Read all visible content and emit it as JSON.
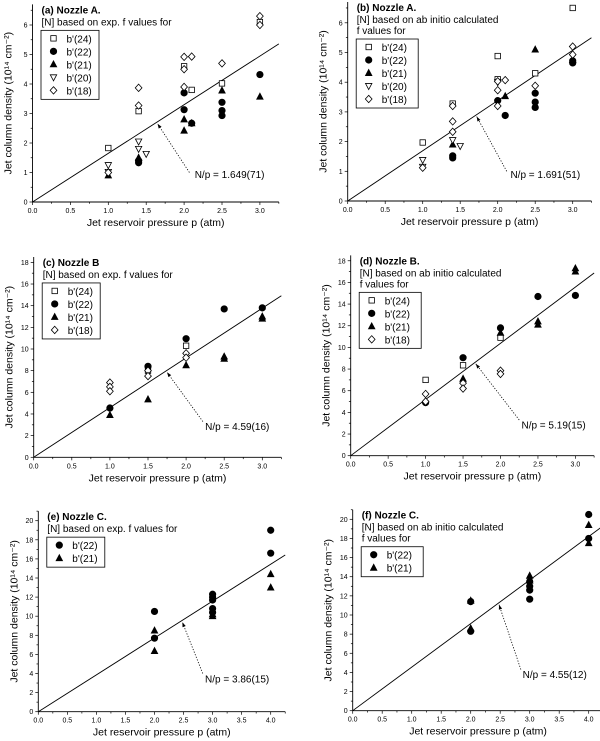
{
  "chart_data": [
    {
      "type": "scatter",
      "title": "(a) Nozzle A.",
      "subtitle_lines": [
        "[N] based on exp. f values for"
      ],
      "xlabel": "Jet reservoir pressure p (atm)",
      "ylabel": "Jet column density (10¹⁴ cm⁻²)",
      "xlim": [
        0,
        3.25
      ],
      "ylim": [
        0,
        6.7
      ],
      "xticks": [
        "0.0",
        "0.5",
        "1.0",
        "1.5",
        "2.0",
        "2.5",
        "3.0"
      ],
      "yticks": [
        "0",
        "1",
        "2",
        "3",
        "4",
        "5",
        "6"
      ],
      "fit": {
        "slope": 1.649,
        "label": "N/p = 1.649(71)"
      },
      "series": [
        {
          "name": "b'(24)",
          "marker": "open-square",
          "points": [
            [
              1.0,
              1.83
            ],
            [
              1.4,
              3.08
            ],
            [
              2.0,
              4.6
            ],
            [
              2.1,
              3.8
            ],
            [
              2.5,
              4.02
            ],
            [
              3.0,
              6.1
            ]
          ]
        },
        {
          "name": "b'(22)",
          "marker": "filled-circle",
          "points": [
            [
              1.4,
              1.33
            ],
            [
              1.4,
              1.4
            ],
            [
              2.0,
              3.7
            ],
            [
              2.0,
              3.13
            ],
            [
              2.1,
              2.67
            ],
            [
              2.5,
              3.38
            ],
            [
              2.5,
              3.1
            ],
            [
              2.5,
              2.93
            ],
            [
              3.0,
              4.32
            ]
          ]
        },
        {
          "name": "b'(21)",
          "marker": "filled-triangle",
          "points": [
            [
              1.0,
              0.9
            ],
            [
              1.4,
              1.5
            ],
            [
              2.0,
              2.8
            ],
            [
              2.0,
              2.42
            ],
            [
              2.1,
              2.67
            ],
            [
              2.5,
              3.78
            ],
            [
              3.0,
              3.57
            ]
          ]
        },
        {
          "name": "b'(20)",
          "marker": "open-down-triangle",
          "points": [
            [
              1.0,
              1.25
            ],
            [
              1.0,
              1.02
            ],
            [
              1.4,
              2.05
            ],
            [
              1.4,
              1.8
            ],
            [
              1.5,
              1.63
            ]
          ]
        },
        {
          "name": "b'(18)",
          "marker": "open-diamond",
          "points": [
            [
              1.0,
              1.0
            ],
            [
              1.4,
              3.87
            ],
            [
              1.4,
              3.27
            ],
            [
              2.0,
              4.92
            ],
            [
              2.0,
              4.5
            ],
            [
              2.0,
              3.9
            ],
            [
              2.1,
              4.93
            ],
            [
              2.5,
              4.7
            ],
            [
              3.0,
              6.3
            ],
            [
              3.0,
              6.0
            ]
          ]
        }
      ]
    },
    {
      "type": "scatter",
      "title": "(b) Nozzle A.",
      "subtitle_lines": [
        "[N] based on ab initio calculated",
        "f values for"
      ],
      "xlabel": "Jet reservoir pressure p (atm)",
      "ylabel": "Jet column density (10¹⁴ cm⁻²)",
      "xlim": [
        0,
        3.25
      ],
      "ylim": [
        0,
        6.7
      ],
      "xticks": [
        "0.0",
        "0.5",
        "1.0",
        "1.5",
        "2.0",
        "2.5",
        "3.0"
      ],
      "yticks": [
        "0",
        "1",
        "2",
        "3",
        "4",
        "5",
        "6"
      ],
      "fit": {
        "slope": 1.691,
        "label": "N/p = 1.691(51)"
      },
      "series": [
        {
          "name": "b'(24)",
          "marker": "open-square",
          "points": [
            [
              1.0,
              1.97
            ],
            [
              1.4,
              3.28
            ],
            [
              2.0,
              4.88
            ],
            [
              2.0,
              4.1
            ],
            [
              2.5,
              4.3
            ],
            [
              3.0,
              6.5
            ]
          ]
        },
        {
          "name": "b'(22)",
          "marker": "filled-circle",
          "points": [
            [
              1.4,
              1.52
            ],
            [
              1.4,
              1.45
            ],
            [
              2.0,
              3.38
            ],
            [
              2.1,
              2.88
            ],
            [
              2.5,
              3.63
            ],
            [
              2.5,
              3.33
            ],
            [
              2.5,
              3.15
            ],
            [
              3.0,
              4.65
            ],
            [
              3.0,
              4.72
            ]
          ]
        },
        {
          "name": "b'(21)",
          "marker": "filled-triangle",
          "points": [
            [
              1.4,
              1.9
            ],
            [
              2.1,
              3.53
            ],
            [
              2.5,
              5.1
            ],
            [
              3.0,
              4.75
            ]
          ]
        },
        {
          "name": "b'(20)",
          "marker": "open-down-triangle",
          "points": [
            [
              1.0,
              1.38
            ],
            [
              1.0,
              1.15
            ],
            [
              1.4,
              2.05
            ],
            [
              1.5,
              1.85
            ],
            [
              2.0,
              4.0
            ]
          ]
        },
        {
          "name": "b'(18)",
          "marker": "open-diamond",
          "points": [
            [
              1.0,
              1.12
            ],
            [
              1.4,
              3.2
            ],
            [
              1.4,
              2.68
            ],
            [
              1.4,
              2.33
            ],
            [
              2.0,
              4.03
            ],
            [
              2.0,
              3.73
            ],
            [
              2.0,
              3.2
            ],
            [
              2.1,
              4.07
            ],
            [
              2.5,
              3.88
            ],
            [
              3.0,
              5.2
            ],
            [
              3.0,
              4.93
            ]
          ]
        }
      ]
    },
    {
      "type": "scatter",
      "title": "(c) Nozzle B",
      "subtitle_lines": [
        "[N] based on exp. f values for"
      ],
      "xlabel": "Jet reservoir pressure p (atm)",
      "ylabel": "Jet column density (10¹⁴ cm⁻²)",
      "xlim": [
        0,
        3.25
      ],
      "ylim": [
        0,
        18.5
      ],
      "xticks": [
        "0.0",
        "0.5",
        "1.0",
        "1.5",
        "2.0",
        "2.5",
        "3.0"
      ],
      "yticks": [
        "0",
        "2",
        "4",
        "6",
        "8",
        "10",
        "12",
        "14",
        "16",
        "18"
      ],
      "fit": {
        "slope": 4.59,
        "label": "N/p = 4.59(16)"
      },
      "series": [
        {
          "name": "b'(24)",
          "marker": "open-square",
          "points": [
            [
              1.5,
              8.0
            ],
            [
              2.0,
              10.3
            ]
          ]
        },
        {
          "name": "b'(22)",
          "marker": "filled-circle",
          "points": [
            [
              1.0,
              4.55
            ],
            [
              1.5,
              8.4
            ],
            [
              2.0,
              10.95
            ],
            [
              2.5,
              13.7
            ],
            [
              3.0,
              13.8
            ]
          ]
        },
        {
          "name": "b'(21)",
          "marker": "filled-triangle",
          "points": [
            [
              1.0,
              3.9
            ],
            [
              1.5,
              5.35
            ],
            [
              2.0,
              8.5
            ],
            [
              2.5,
              9.3
            ],
            [
              2.5,
              9.1
            ],
            [
              3.0,
              13.0
            ],
            [
              3.0,
              12.8
            ]
          ]
        },
        {
          "name": "b'(18)",
          "marker": "open-diamond",
          "points": [
            [
              1.0,
              6.9
            ],
            [
              1.0,
              6.5
            ],
            [
              1.0,
              6.1
            ],
            [
              1.5,
              8.0
            ],
            [
              1.5,
              7.5
            ],
            [
              2.0,
              9.6
            ],
            [
              2.0,
              9.2
            ]
          ]
        }
      ]
    },
    {
      "type": "scatter",
      "title": "(d) Nozzle B.",
      "subtitle_lines": [
        "[N] based on ab initio calculated",
        "f values for"
      ],
      "xlabel": "Jet reservoir pressure p (atm)",
      "ylabel": "Jet column density (10¹⁴ cm⁻²)",
      "xlim": [
        0,
        3.25
      ],
      "ylim": [
        0,
        18.5
      ],
      "xticks": [
        "0.0",
        "0.5",
        "1.0",
        "1.5",
        "2.0",
        "2.5",
        "3.0"
      ],
      "yticks": [
        "0",
        "2",
        "4",
        "6",
        "8",
        "10",
        "12",
        "14",
        "16",
        "18"
      ],
      "fit": {
        "slope": 5.19,
        "label": "N/p = 5.19(15)"
      },
      "series": [
        {
          "name": "b'(24)",
          "marker": "open-square",
          "points": [
            [
              1.0,
              7.0
            ],
            [
              1.5,
              8.35
            ],
            [
              2.0,
              10.9
            ]
          ]
        },
        {
          "name": "b'(22)",
          "marker": "filled-circle",
          "points": [
            [
              1.0,
              4.9
            ],
            [
              1.5,
              9.05
            ],
            [
              2.0,
              11.8
            ],
            [
              2.5,
              14.7
            ],
            [
              3.0,
              14.8
            ]
          ]
        },
        {
          "name": "b'(21)",
          "marker": "filled-triangle",
          "points": [
            [
              1.5,
              7.1
            ],
            [
              2.0,
              11.35
            ],
            [
              2.5,
              12.4
            ],
            [
              2.5,
              12.1
            ],
            [
              3.0,
              17.3
            ],
            [
              3.0,
              17.0
            ]
          ]
        },
        {
          "name": "b'(18)",
          "marker": "open-diamond",
          "points": [
            [
              1.0,
              5.7
            ],
            [
              1.0,
              5.0
            ],
            [
              1.5,
              6.7
            ],
            [
              1.5,
              6.2
            ],
            [
              2.0,
              7.85
            ],
            [
              2.0,
              7.55
            ]
          ]
        }
      ]
    },
    {
      "type": "scatter",
      "title": "(e) Nozzle C.",
      "subtitle_lines": [
        "[N] based on exp. f values for"
      ],
      "xlabel": "Jet reservoir pressure p (atm)",
      "ylabel": "Jet column density (10¹⁴ cm⁻²)",
      "xlim": [
        0,
        4.25
      ],
      "ylim": [
        0,
        21
      ],
      "xticks": [
        "0.0",
        "0.5",
        "1.0",
        "1.5",
        "2.0",
        "2.5",
        "3.0",
        "3.5",
        "4.0"
      ],
      "yticks": [
        "0",
        "2",
        "4",
        "6",
        "8",
        "10",
        "12",
        "14",
        "16",
        "18",
        "20"
      ],
      "fit": {
        "slope": 3.86,
        "label": "N/p = 3.86(15)"
      },
      "series": [
        {
          "name": "b'(22)",
          "marker": "filled-circle",
          "points": [
            [
              2.0,
              10.5
            ],
            [
              2.0,
              7.7
            ],
            [
              3.0,
              12.3
            ],
            [
              3.0,
              12.0
            ],
            [
              3.0,
              11.7
            ],
            [
              3.0,
              10.8
            ],
            [
              3.0,
              10.4
            ],
            [
              4.0,
              19.0
            ],
            [
              4.0,
              16.6
            ]
          ]
        },
        {
          "name": "b'(21)",
          "marker": "filled-triangle",
          "points": [
            [
              2.0,
              8.5
            ],
            [
              2.0,
              6.35
            ],
            [
              3.0,
              10.2
            ],
            [
              3.0,
              10.0
            ],
            [
              4.0,
              14.4
            ],
            [
              4.0,
              13.0
            ]
          ]
        }
      ]
    },
    {
      "type": "scatter",
      "title": "(f) Nozzle C.",
      "subtitle_lines": [
        "[N] based on ab initio calculated",
        "f values for"
      ],
      "xlabel": "Jet reservoir pressure p (atm)",
      "ylabel": "Jet column density (10¹⁴ cm⁻²)",
      "xlim": [
        0,
        4.25
      ],
      "ylim": [
        0,
        21
      ],
      "xticks": [
        "0.0",
        "0.5",
        "1.0",
        "1.5",
        "2.0",
        "2.5",
        "3.0",
        "3.5",
        "4.0"
      ],
      "yticks": [
        "0",
        "2",
        "4",
        "6",
        "8",
        "10",
        "12",
        "14",
        "16",
        "18",
        "20"
      ],
      "fit": {
        "slope": 4.55,
        "label": "N/p = 4.55(12)"
      },
      "series": [
        {
          "name": "b'(22)",
          "marker": "filled-circle",
          "points": [
            [
              2.0,
              8.3
            ],
            [
              2.0,
              11.4
            ],
            [
              3.0,
              13.5
            ],
            [
              3.0,
              13.0
            ],
            [
              3.0,
              12.6
            ],
            [
              3.0,
              11.65
            ],
            [
              4.0,
              20.5
            ],
            [
              4.0,
              18.0
            ]
          ]
        },
        {
          "name": "b'(21)",
          "marker": "filled-triangle",
          "points": [
            [
              2.0,
              11.5
            ],
            [
              2.0,
              8.6
            ],
            [
              3.0,
              14.1
            ],
            [
              3.0,
              13.6
            ],
            [
              4.0,
              19.4
            ],
            [
              4.0,
              17.5
            ]
          ]
        }
      ]
    }
  ]
}
